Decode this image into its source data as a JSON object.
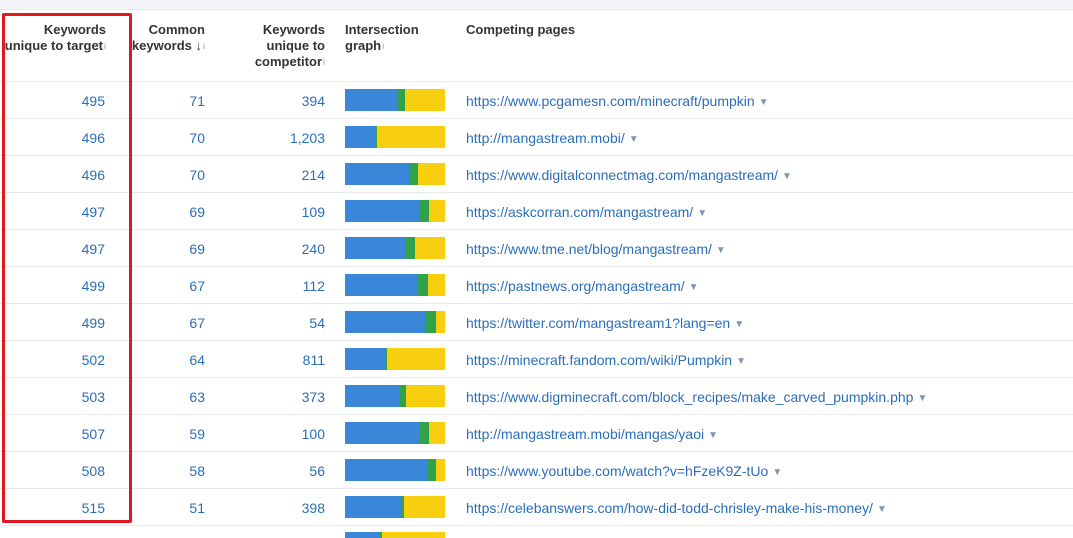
{
  "colors": {
    "blue": "#3a87d9",
    "green": "#2fa24a",
    "yellow": "#f7cf0f",
    "link": "#2a6ebb",
    "highlight": "#e0171f"
  },
  "headers": {
    "unique_target": [
      "Keywords",
      "unique to target"
    ],
    "common": [
      "Common",
      "keywords"
    ],
    "common_sort": "↓",
    "unique_comp": [
      "Keywords",
      "unique to",
      "competitor"
    ],
    "graph": [
      "Intersection",
      "graph"
    ],
    "pages": "Competing pages",
    "info_icon": "i"
  },
  "rows": [
    {
      "unique_target": "495",
      "common": "71",
      "unique_comp": "394",
      "url": "https://www.pcgamesn.com/minecraft/pumpkin",
      "graph": [
        52,
        8,
        40
      ]
    },
    {
      "unique_target": "496",
      "common": "70",
      "unique_comp": "1,203",
      "url": "http://mangastream.mobi/",
      "graph": [
        30,
        2,
        68
      ]
    },
    {
      "unique_target": "496",
      "common": "70",
      "unique_comp": "214",
      "url": "https://www.digitalconnectmag.com/mangastream/",
      "graph": [
        64,
        9,
        27
      ]
    },
    {
      "unique_target": "497",
      "common": "69",
      "unique_comp": "109",
      "url": "https://askcorran.com/mangastream/",
      "graph": [
        74,
        10,
        16
      ]
    },
    {
      "unique_target": "497",
      "common": "69",
      "unique_comp": "240",
      "url": "https://www.tme.net/blog/mangastream/",
      "graph": [
        61,
        9,
        30
      ]
    },
    {
      "unique_target": "499",
      "common": "67",
      "unique_comp": "112",
      "url": "https://pastnews.org/mangastream/",
      "graph": [
        73,
        10,
        17
      ]
    },
    {
      "unique_target": "499",
      "common": "67",
      "unique_comp": "54",
      "url": "https://twitter.com/mangastream1?lang=en",
      "graph": [
        80,
        11,
        9
      ]
    },
    {
      "unique_target": "502",
      "common": "64",
      "unique_comp": "811",
      "url": "https://minecraft.fandom.com/wiki/Pumpkin",
      "graph": [
        40,
        2,
        58
      ]
    },
    {
      "unique_target": "503",
      "common": "63",
      "unique_comp": "373",
      "url": "https://www.digminecraft.com/block_recipes/make_carved_pumpkin.php",
      "graph": [
        55,
        6,
        39
      ]
    },
    {
      "unique_target": "507",
      "common": "59",
      "unique_comp": "100",
      "url": "http://mangastream.mobi/mangas/yaoi",
      "graph": [
        75,
        9,
        16
      ]
    },
    {
      "unique_target": "508",
      "common": "58",
      "unique_comp": "56",
      "url": "https://www.youtube.com/watch?v=hFzeK9Z-tUo",
      "graph": [
        82,
        9,
        9
      ]
    },
    {
      "unique_target": "515",
      "common": "51",
      "unique_comp": "398",
      "url": "https://celebanswers.com/how-did-todd-chrisley-make-his-money/",
      "graph": [
        56,
        3,
        41
      ]
    }
  ],
  "partial_row_graph": [
    35,
    2,
    63
  ]
}
